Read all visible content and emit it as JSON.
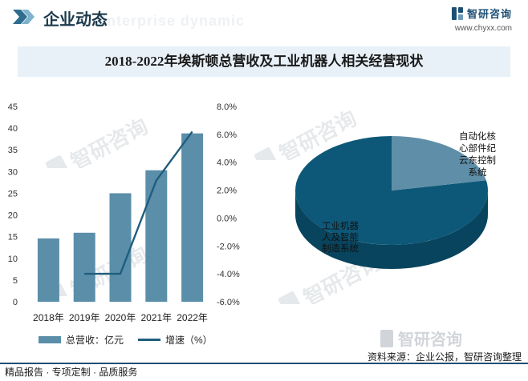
{
  "header": {
    "section_title": "企业动态",
    "bg_text": "Enterprise dynamic",
    "brand_name": "智研咨询",
    "brand_url": "www.chyxx.com"
  },
  "colors": {
    "bar": "#5b8ea9",
    "line": "#1f5d7e",
    "pie_main": "#0d5878",
    "pie_main_side": "#08445e",
    "pie_minor": "#5f8fa8",
    "pie_minor_side": "#3f6f86"
  },
  "chart_data": [
    {
      "type": "bar",
      "title": "2018-2022年埃斯顿总营收及工业机器人相关经营现状",
      "categories": [
        "2018年",
        "2019年",
        "2020年",
        "2021年",
        "2022年"
      ],
      "series": [
        {
          "name": "总营收：亿元",
          "type": "bar",
          "axis": "left",
          "values": [
            14.6,
            15.9,
            25.0,
            30.3,
            38.8
          ]
        },
        {
          "name": "增速（%）",
          "type": "line",
          "axis": "right",
          "values": [
            null,
            -4.0,
            -4.0,
            2.7,
            6.2
          ]
        }
      ],
      "y_left": {
        "ylim": [
          0,
          45
        ],
        "ticks": [
          "0",
          "5",
          "10",
          "15",
          "20",
          "25",
          "30",
          "35",
          "40",
          "45"
        ]
      },
      "y_right": {
        "ylim": [
          -6,
          8
        ],
        "ticks": [
          "-6.0%",
          "-4.0%",
          "-2.0%",
          "0.0%",
          "2.0%",
          "4.0%",
          "6.0%",
          "8.0%"
        ]
      },
      "grid": false,
      "legend": "bottom"
    },
    {
      "type": "pie",
      "style": "3d",
      "slices": [
        {
          "label": "工业机器人及智能制造系统",
          "label_lines": [
            "工业机器",
            "人及智能",
            "制造系统"
          ],
          "value": 78
        },
        {
          "label": "自动化核心部件纪云东控制系统",
          "label_lines": [
            "自动化核",
            "心部件纪",
            "云东控制",
            "系统"
          ],
          "value": 22
        }
      ]
    }
  ],
  "legend": {
    "bar_label": "总营收：亿元",
    "line_label": "增速（%）"
  },
  "watermark_text": "智研咨询",
  "footer": {
    "tags": "精品报告 · 专项定制 · 品质服务",
    "source": "资料来源：企业公报，智研咨询整理"
  }
}
